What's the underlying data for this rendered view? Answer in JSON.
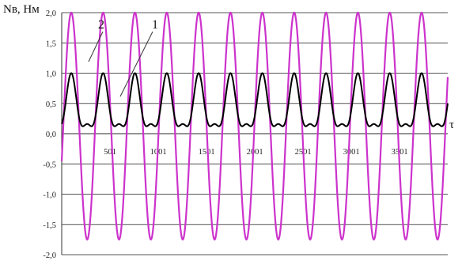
{
  "chart_data": {
    "type": "line",
    "ylabel": "Nв, Нм",
    "xlabel": "τ",
    "ylim": [
      -2.0,
      2.0
    ],
    "xlim": [
      0,
      4000
    ],
    "yticks": [
      "2,0",
      "1,5",
      "1,0",
      "0,5",
      "0,0",
      "-0,5",
      "-1,0",
      "-1,5",
      "-2,0"
    ],
    "ytick_values": [
      2.0,
      1.5,
      1.0,
      0.5,
      0.0,
      -0.5,
      -1.0,
      -1.5,
      -2.0
    ],
    "xticks": [
      "501",
      "1001",
      "1501",
      "2001",
      "2501",
      "3001",
      "3501"
    ],
    "xtick_values": [
      501,
      1001,
      1501,
      2001,
      2501,
      3001,
      3501
    ],
    "grid": "horizontal",
    "series": [
      {
        "name": "1",
        "color": "#000000",
        "amplitude_note": "period ≈ 330, oscillates between 0.0 and 1.0 with secondary peak at 0.5",
        "period": 330,
        "phase": 0.3,
        "main_max": 1.0,
        "main_min": 0.0,
        "secondary_peak": 0.5
      },
      {
        "name": "2",
        "color": "#cc33cc",
        "period": 330,
        "phase": 0.3,
        "max": 2.0,
        "min": -1.75
      }
    ],
    "annotations": [
      {
        "text": "2",
        "series": "2"
      },
      {
        "text": "1",
        "series": "1"
      }
    ]
  }
}
